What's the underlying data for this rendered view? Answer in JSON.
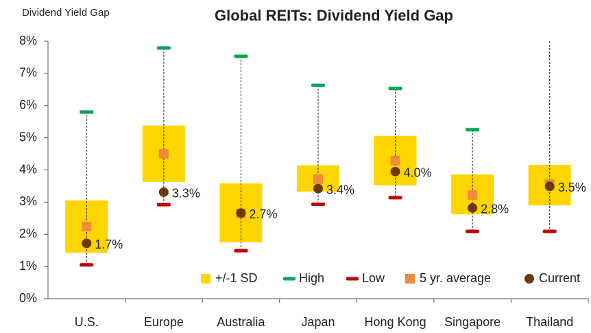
{
  "chart_data": {
    "type": "range_box",
    "title": "Global REITs: Dividend Yield Gap",
    "y_label": "Dividend Yield Gap",
    "categories": [
      "U.S.",
      "Europe",
      "Australia",
      "Japan",
      "Hong Kong",
      "Singapore",
      "Thailand"
    ],
    "ylim": [
      0,
      8
    ],
    "yticks": [
      {
        "value": 0,
        "label": "0%"
      },
      {
        "value": 1,
        "label": "1%"
      },
      {
        "value": 2,
        "label": "2%"
      },
      {
        "value": 3,
        "label": "3%"
      },
      {
        "value": 4,
        "label": "4%"
      },
      {
        "value": 5,
        "label": "5%"
      },
      {
        "value": 6,
        "label": "6%"
      },
      {
        "value": 7,
        "label": "7%"
      },
      {
        "value": 8,
        "label": "8%"
      }
    ],
    "series": [
      {
        "name": "+/-1 SD",
        "color": "#FFD500",
        "upper": [
          3.05,
          5.38,
          3.58,
          4.14,
          5.06,
          3.86,
          4.16
        ],
        "lower": [
          1.43,
          3.63,
          1.75,
          3.33,
          3.52,
          2.62,
          2.9
        ]
      },
      {
        "name": "High",
        "color": "#00A651",
        "values": [
          5.8,
          7.79,
          7.53,
          6.63,
          6.53,
          5.25,
          8.0
        ]
      },
      {
        "name": "Low",
        "color": "#C00000",
        "values": [
          1.05,
          2.92,
          1.49,
          2.93,
          3.14,
          2.09,
          2.09
        ]
      },
      {
        "name": "5 yr. average",
        "color": "#F08A3C",
        "values": [
          2.24,
          4.5,
          2.65,
          3.71,
          4.29,
          3.22,
          3.56
        ]
      },
      {
        "name": "Current",
        "color": "#6B3A0A",
        "values": [
          1.72,
          3.31,
          2.66,
          3.42,
          3.95,
          2.82,
          3.49
        ],
        "value_labels": [
          "1.7%",
          "3.3%",
          "2.7%",
          "3.4%",
          "4.0%",
          "2.8%",
          "3.5%"
        ]
      }
    ],
    "legend": "bottom-right"
  }
}
